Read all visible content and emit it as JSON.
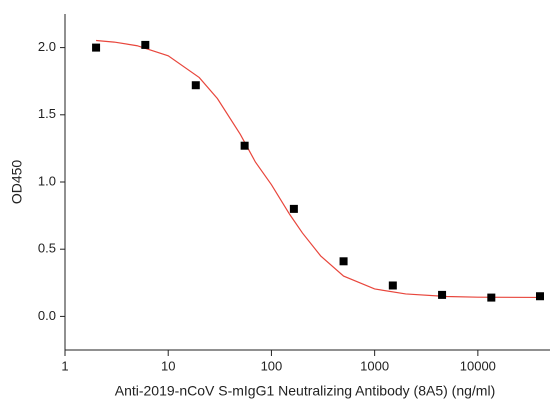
{
  "chart_data": {
    "type": "scatter",
    "xlabel": "Anti-2019-nCoV S-mIgG1 Neutralizing Antibody (8A5) (ng/ml)",
    "ylabel": "OD450",
    "xscale": "log",
    "xlim": [
      1,
      50000
    ],
    "xticks": [
      1,
      10,
      100,
      1000,
      10000
    ],
    "ylim": [
      -0.25,
      2.25
    ],
    "yticks": [
      {
        "value": 0,
        "label": "0.0"
      },
      {
        "value": 0.5,
        "label": "0.5"
      },
      {
        "value": 1,
        "label": "1.0"
      },
      {
        "value": 1.5,
        "label": "1.5"
      },
      {
        "value": 2,
        "label": "2.0"
      }
    ],
    "color": "#000000",
    "x": [
      2,
      6,
      18.5,
      55,
      165,
      500,
      1500,
      4500,
      13500,
      40000
    ],
    "values": [
      2.0,
      2.02,
      1.72,
      1.27,
      0.8,
      0.41,
      0.23,
      0.16,
      0.14,
      0.15
    ],
    "curve": {
      "color": "#e8463c",
      "x": [
        2,
        3,
        5,
        10,
        20,
        30,
        50,
        70,
        100,
        150,
        200,
        300,
        500,
        1000,
        2000,
        5000,
        10000,
        40000
      ],
      "y": [
        2.053,
        2.041,
        2.014,
        1.939,
        1.777,
        1.62,
        1.354,
        1.148,
        0.98,
        0.76,
        0.62,
        0.45,
        0.3,
        0.204,
        0.167,
        0.148,
        0.143,
        0.141
      ]
    }
  }
}
